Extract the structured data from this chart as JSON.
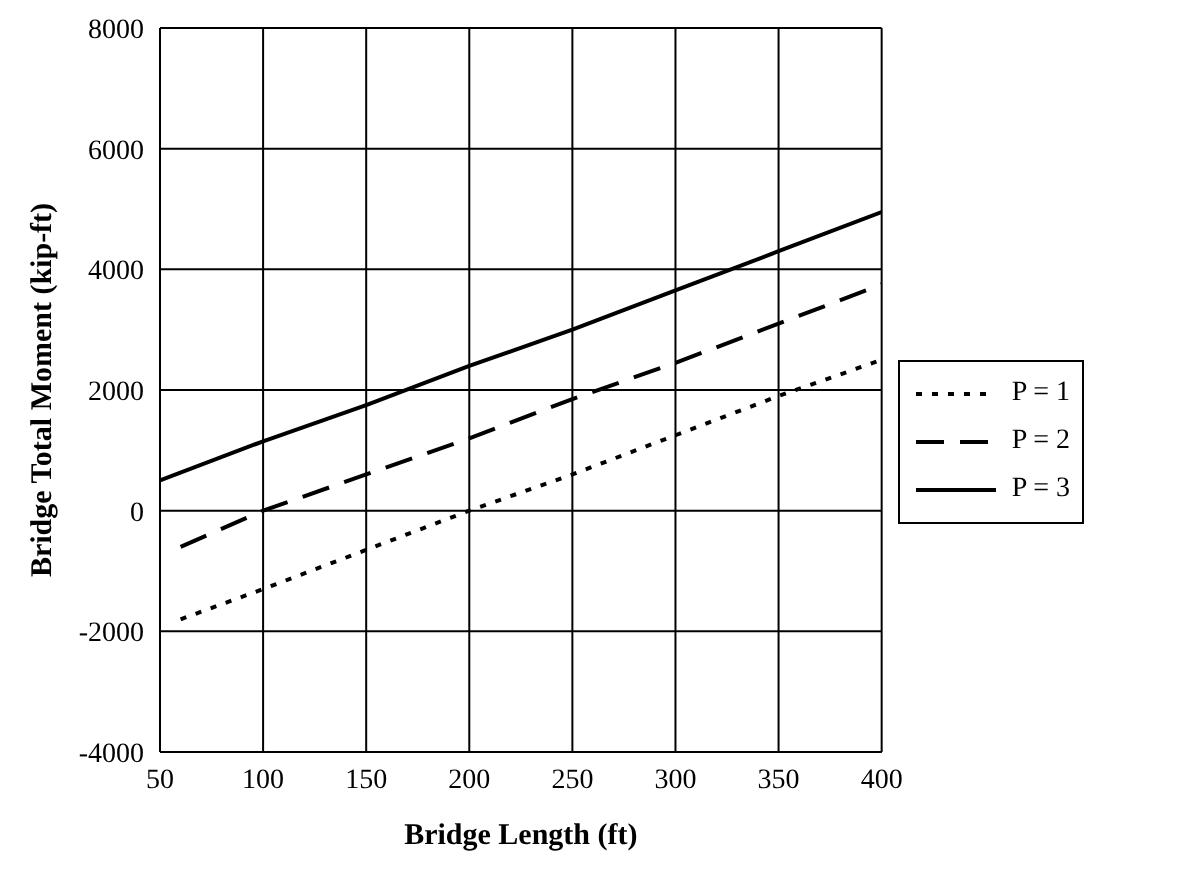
{
  "chart_data": {
    "type": "line",
    "xlabel": "Bridge Length (ft)",
    "ylabel": "Bridge Total Moment (kip-ft)",
    "xlim": [
      50,
      400
    ],
    "xticks": [
      50,
      100,
      150,
      200,
      250,
      300,
      350,
      400
    ],
    "ylim": [
      -4000,
      8000
    ],
    "yticks": [
      -4000,
      -2000,
      0,
      2000,
      4000,
      6000,
      8000
    ],
    "grid": true,
    "legend": "right",
    "marker": "none",
    "series": [
      {
        "name": "P = 1",
        "color": "#000000",
        "line_style": "dotted",
        "x": [
          60,
          100,
          150,
          200,
          250,
          300,
          350,
          400
        ],
        "values": [
          -1800,
          -1300,
          -650,
          0,
          600,
          1250,
          1900,
          2500
        ]
      },
      {
        "name": "P = 2",
        "color": "#000000",
        "line_style": "dashed",
        "x": [
          60,
          100,
          150,
          200,
          250,
          300,
          350,
          400
        ],
        "values": [
          -600,
          0,
          600,
          1200,
          1850,
          2450,
          3100,
          3750
        ]
      },
      {
        "name": "P = 3",
        "color": "#000000",
        "line_style": "solid",
        "x": [
          50,
          100,
          150,
          200,
          250,
          300,
          350,
          400
        ],
        "values": [
          500,
          1150,
          1750,
          2400,
          3000,
          3650,
          4300,
          4950
        ]
      }
    ]
  }
}
